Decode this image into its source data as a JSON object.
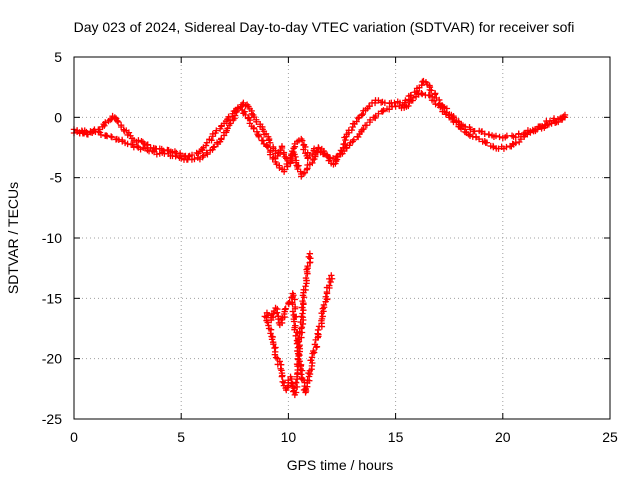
{
  "chart_data": {
    "type": "scatter",
    "title": "Day 023 of 2024, Sidereal Day-to-day VTEC variation (SDTVAR) for receiver sofi",
    "xlabel": "GPS time / hours",
    "ylabel": "SDTVAR / TECUs",
    "xlim": [
      0,
      25
    ],
    "ylim": [
      -25,
      5
    ],
    "x_ticks": [
      0,
      5,
      10,
      15,
      20,
      25
    ],
    "y_ticks": [
      5,
      0,
      -5,
      -10,
      -15,
      -20,
      -25
    ],
    "x_tick_labels": [
      "0",
      "5",
      "10",
      "15",
      "20",
      "25"
    ],
    "y_tick_labels": [
      "5",
      "0",
      "-5",
      "-10",
      "-15",
      "-20",
      "-25"
    ],
    "grid": true,
    "marker": "+",
    "color": "#ff0000",
    "series": [
      {
        "name": "main track A",
        "x": [
          0.0,
          0.5,
          1.0,
          1.5,
          2.0,
          2.5,
          3.0,
          3.5,
          4.0,
          4.5,
          5.0,
          5.5,
          6.0,
          6.5,
          7.0,
          7.3,
          7.6,
          7.9,
          8.2,
          8.5,
          8.8,
          9.1,
          9.3,
          9.5,
          9.7,
          9.9,
          10.1,
          10.3,
          10.6,
          10.9,
          11.2,
          11.5,
          11.8,
          12.1,
          12.4,
          12.7,
          13.0,
          13.3,
          13.6,
          13.9,
          14.2,
          14.5,
          14.8,
          15.1,
          15.4,
          15.7,
          16.0,
          16.3,
          16.6,
          16.9,
          17.2,
          17.6,
          18.0,
          18.5,
          19.0,
          19.5,
          20.0,
          20.5,
          21.0,
          21.5,
          22.0,
          22.5,
          22.9
        ],
        "y": [
          -1.3,
          -1.1,
          -1.2,
          -1.5,
          -1.8,
          -2.2,
          -2.5,
          -2.8,
          -3.0,
          -3.2,
          -3.4,
          -3.5,
          -3.3,
          -2.5,
          -1.5,
          -0.5,
          0.6,
          1.2,
          0.7,
          -0.2,
          -1.0,
          -1.8,
          -2.6,
          -3.2,
          -2.4,
          -3.4,
          -3.8,
          -2.2,
          -1.8,
          -3.4,
          -2.6,
          -2.9,
          -3.2,
          -3.9,
          -3.0,
          -1.6,
          -0.8,
          0.0,
          0.6,
          1.2,
          1.4,
          1.2,
          1.2,
          1.3,
          1.0,
          1.8,
          2.4,
          3.0,
          2.5,
          1.6,
          0.9,
          0.2,
          -0.6,
          -1.0,
          -1.2,
          -1.5,
          -1.7,
          -1.6,
          -1.3,
          -1.0,
          -0.7,
          -0.4,
          0.0
        ]
      },
      {
        "name": "main track B",
        "x": [
          0.0,
          0.6,
          1.2,
          1.8,
          2.2,
          2.8,
          3.4,
          4.0,
          4.6,
          5.2,
          5.8,
          6.2,
          6.6,
          7.0,
          7.4,
          7.8,
          8.2,
          8.6,
          9.0,
          9.4,
          9.8,
          10.2,
          10.6,
          11.0,
          11.4,
          11.8,
          12.2,
          12.6,
          13.0,
          13.4,
          13.8,
          14.2,
          14.6,
          15.0,
          15.4,
          15.8,
          16.2,
          16.6,
          17.0,
          17.5,
          18.0,
          18.6,
          19.2,
          19.8,
          20.4,
          21.0,
          21.6,
          22.2,
          22.9
        ],
        "y": [
          -1.0,
          -1.4,
          -1.0,
          0.1,
          -0.8,
          -1.9,
          -2.3,
          -2.6,
          -2.9,
          -3.2,
          -3.0,
          -2.1,
          -1.3,
          -0.5,
          0.3,
          0.9,
          -0.5,
          -1.5,
          -2.4,
          -3.7,
          -4.5,
          -3.0,
          -4.9,
          -3.9,
          -2.5,
          -3.1,
          -3.6,
          -2.8,
          -2.0,
          -1.2,
          -0.4,
          0.3,
          0.7,
          0.9,
          0.8,
          1.4,
          2.0,
          1.8,
          1.0,
          0.0,
          -0.8,
          -1.6,
          -2.1,
          -2.6,
          -2.4,
          -1.6,
          -1.0,
          -0.3,
          0.2
        ]
      },
      {
        "name": "lower branch A",
        "x": [
          8.9,
          9.1,
          9.3,
          9.5,
          9.7,
          9.8,
          9.9,
          10.0,
          10.1,
          10.2,
          10.3,
          10.4,
          10.5,
          10.6,
          10.7,
          10.8,
          10.9,
          11.0
        ],
        "y": [
          -16.5,
          -17.5,
          -18.8,
          -20.0,
          -21.2,
          -22.0,
          -22.6,
          -22.0,
          -21.5,
          -22.3,
          -23.0,
          -21.5,
          -19.0,
          -17.5,
          -15.5,
          -14.0,
          -12.5,
          -11.3
        ]
      },
      {
        "name": "lower branch B",
        "x": [
          9.0,
          9.2,
          9.4,
          9.6,
          9.8,
          10.0,
          10.2,
          10.4,
          10.6,
          10.8,
          11.0,
          11.2,
          11.4,
          11.6,
          11.8,
          12.0
        ],
        "y": [
          -16.2,
          -16.8,
          -15.8,
          -17.2,
          -16.3,
          -15.4,
          -14.6,
          -18.5,
          -21.3,
          -22.8,
          -21.0,
          -19.5,
          -18.0,
          -16.5,
          -14.6,
          -13.1
        ]
      }
    ]
  }
}
